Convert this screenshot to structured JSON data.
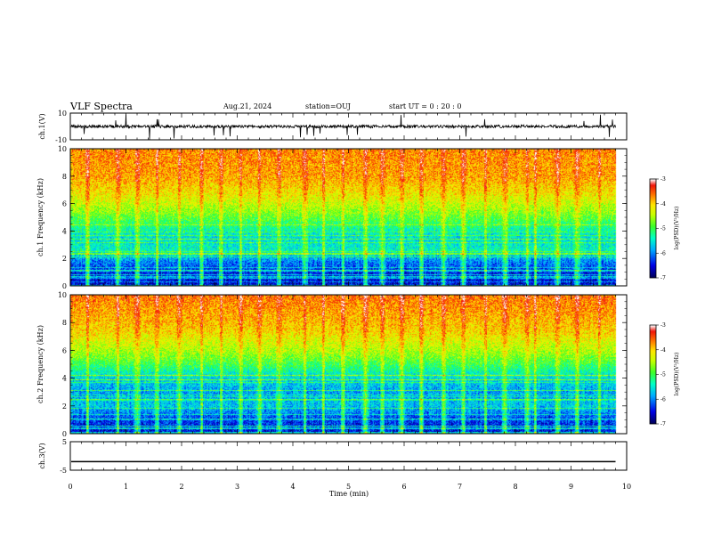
{
  "header": {
    "title": "VLF Spectra",
    "date": "Aug.21, 2024",
    "station": "station=OUJ",
    "start": "start  UT =   0 : 20 : 0"
  },
  "chart_data": [
    {
      "type": "line",
      "panel": "ch1-waveform",
      "ylabel": "ch.1(V)",
      "ylim": [
        -10,
        10
      ],
      "yticks": [
        "10",
        "-10"
      ],
      "xlim": [
        0,
        10
      ],
      "series": [
        {
          "values_description_free": true,
          "baseline": 0,
          "noise_amplitude": 2,
          "end_min": 9.8
        }
      ],
      "color": "#000000"
    },
    {
      "type": "heatmap",
      "panel": "ch1-spectrogram",
      "ylabel": "ch.1\nFrequency  (kHz)",
      "ylim": [
        0,
        10
      ],
      "yticks": [
        "0",
        "2",
        "4",
        "6",
        "8",
        "10"
      ],
      "xlim": [
        0,
        10
      ],
      "data_end_min": 9.8,
      "colorbar": {
        "label": "log(PSD)(V²/Hz)",
        "range": [
          -7,
          -3
        ],
        "ticks": [
          "-3",
          "-4",
          "-5",
          "-6",
          "-7"
        ]
      },
      "profile_log_psd": [
        {
          "f": 0.0,
          "v": -6.6
        },
        {
          "f": 1.0,
          "v": -6.4
        },
        {
          "f": 1.8,
          "v": -6.0
        },
        {
          "f": 2.5,
          "v": -5.4
        },
        {
          "f": 3.5,
          "v": -5.6
        },
        {
          "f": 4.5,
          "v": -5.1
        },
        {
          "f": 5.5,
          "v": -4.6
        },
        {
          "f": 6.5,
          "v": -4.2
        },
        {
          "f": 8.0,
          "v": -3.8
        },
        {
          "f": 10.0,
          "v": -3.7
        }
      ],
      "bursts_min": [
        0.3,
        0.85,
        1.2,
        1.55,
        1.95,
        2.35,
        2.7,
        3.05,
        3.4,
        3.75,
        4.2,
        4.55,
        4.9,
        5.3,
        5.6,
        5.95,
        6.3,
        6.7,
        7.05,
        7.45,
        7.8,
        8.2,
        8.35,
        8.75,
        9.1,
        9.5
      ]
    },
    {
      "type": "heatmap",
      "panel": "ch2-spectrogram",
      "ylabel": "ch.2\nFrequency  (kHz)",
      "ylim": [
        0,
        10
      ],
      "yticks": [
        "0",
        "2",
        "4",
        "6",
        "8",
        "10"
      ],
      "xlim": [
        0,
        10
      ],
      "data_end_min": 9.8,
      "colorbar": {
        "label": "log(PSD)(V²/Hz)",
        "range": [
          -7,
          -3
        ],
        "ticks": [
          "-3",
          "-4",
          "-5",
          "-6",
          "-7"
        ]
      },
      "profile_log_psd": [
        {
          "f": 0.0,
          "v": -6.5
        },
        {
          "f": 1.0,
          "v": -6.3
        },
        {
          "f": 2.0,
          "v": -5.7
        },
        {
          "f": 3.0,
          "v": -5.9
        },
        {
          "f": 4.0,
          "v": -5.6
        },
        {
          "f": 5.0,
          "v": -5.0
        },
        {
          "f": 6.0,
          "v": -4.5
        },
        {
          "f": 7.5,
          "v": -4.0
        },
        {
          "f": 10.0,
          "v": -3.6
        }
      ],
      "bursts_min": [
        0.3,
        0.85,
        1.2,
        1.55,
        1.95,
        2.35,
        2.7,
        3.05,
        3.4,
        3.75,
        4.2,
        4.55,
        4.9,
        5.3,
        5.6,
        5.95,
        6.3,
        6.7,
        7.05,
        7.45,
        7.8,
        8.2,
        8.35,
        8.75,
        9.1,
        9.5
      ]
    },
    {
      "type": "line",
      "panel": "ch3-waveform",
      "ylabel": "ch.3(V)",
      "ylim": [
        -5,
        5
      ],
      "yticks": [
        "5",
        "-5"
      ],
      "xlim": [
        0,
        10
      ],
      "series": [
        {
          "constant_value": -2,
          "end_min": 9.8
        }
      ],
      "color": "#000000"
    }
  ],
  "xaxis": {
    "label": "Time  (min)",
    "ticks": [
      "0",
      "1",
      "2",
      "3",
      "4",
      "5",
      "6",
      "7",
      "8",
      "9",
      "10"
    ]
  }
}
